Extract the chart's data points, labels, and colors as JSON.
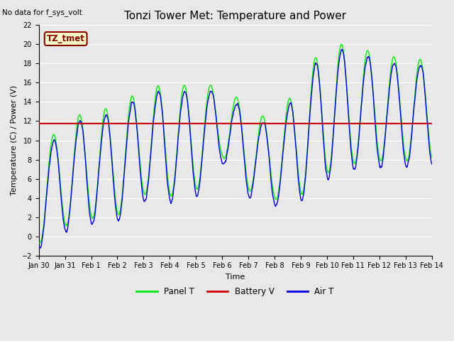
{
  "title": "Tonzi Tower Met: Temperature and Power",
  "no_data_label": "No data for f_sys_volt",
  "ylabel": "Temperature (C) / Power (V)",
  "xlabel": "Time",
  "ylim": [
    -2,
    22
  ],
  "background_color": "#e8e8e8",
  "plot_bg_color": "#e8e8e8",
  "battery_v": 11.75,
  "legend_labels": [
    "Panel T",
    "Battery V",
    "Air T"
  ],
  "tz_tmet_label": "TZ_tmet",
  "tz_label_color": "#880000",
  "tz_box_color": "#ffffcc",
  "x_tick_labels": [
    "Jan 30",
    "Jan 31",
    "Feb 1",
    "Feb 2",
    "Feb 3",
    "Feb 4",
    "Feb 5",
    "Feb 6",
    "Feb 7",
    "Feb 8",
    "Feb 9",
    "Feb 10",
    "Feb 11",
    "Feb 12",
    "Feb 13",
    "Feb 14"
  ],
  "panel_t_color": "#00ee00",
  "air_t_color": "#0000dd",
  "battery_color": "#cc0000",
  "white_grid_color": "#ffffff",
  "title_fontsize": 11,
  "tick_fontsize": 7,
  "ylabel_fontsize": 8,
  "xlabel_fontsize": 8
}
